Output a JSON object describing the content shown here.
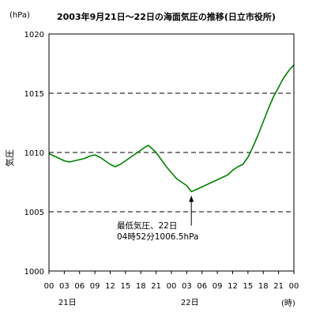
{
  "chart_data": {
    "type": "line",
    "title": "2003年9月21日～22日の海面気圧の推移(日立市役所)",
    "y_unit": "(hPa)",
    "ylabel": "気圧",
    "x_unit": "(時)",
    "ylim": [
      1000,
      1020
    ],
    "xlim": [
      0,
      48
    ],
    "grid": "horizontal dashed",
    "y_ticks": [
      {
        "value": 1000,
        "label": "1000"
      },
      {
        "value": 1005,
        "label": "1005"
      },
      {
        "value": 1010,
        "label": "1010"
      },
      {
        "value": 1015,
        "label": "1015"
      },
      {
        "value": 1020,
        "label": "1020"
      }
    ],
    "x_ticks": [
      {
        "value": 0,
        "label": "00"
      },
      {
        "value": 3,
        "label": "03"
      },
      {
        "value": 6,
        "label": "06"
      },
      {
        "value": 9,
        "label": "09"
      },
      {
        "value": 12,
        "label": "12"
      },
      {
        "value": 15,
        "label": "15"
      },
      {
        "value": 18,
        "label": "18"
      },
      {
        "value": 21,
        "label": "21"
      },
      {
        "value": 24,
        "label": "00"
      },
      {
        "value": 27,
        "label": "03"
      },
      {
        "value": 30,
        "label": "06"
      },
      {
        "value": 33,
        "label": "09"
      },
      {
        "value": 36,
        "label": "12"
      },
      {
        "value": 39,
        "label": "15"
      },
      {
        "value": 42,
        "label": "18"
      },
      {
        "value": 45,
        "label": "21"
      },
      {
        "value": 48,
        "label": "00"
      }
    ],
    "day_labels": [
      {
        "value": 3.6,
        "label": "21日"
      },
      {
        "value": 27.6,
        "label": "22日"
      }
    ],
    "series": [
      {
        "color": "#008000",
        "x": [
          0,
          1,
          2,
          3,
          4,
          5,
          6,
          7,
          8,
          9,
          10,
          11,
          12,
          13,
          14,
          15,
          16,
          17,
          18,
          19,
          19.5,
          20,
          21,
          22,
          23,
          24,
          25,
          26,
          27,
          27.9,
          29,
          30,
          31,
          32,
          33,
          34,
          35,
          36,
          37,
          38,
          39,
          40,
          41,
          42,
          43,
          44,
          45,
          46,
          47,
          48
        ],
        "y": [
          1009.9,
          1009.7,
          1009.5,
          1009.3,
          1009.2,
          1009.3,
          1009.4,
          1009.5,
          1009.7,
          1009.8,
          1009.6,
          1009.3,
          1009.0,
          1008.8,
          1009.0,
          1009.3,
          1009.6,
          1009.9,
          1010.2,
          1010.5,
          1010.6,
          1010.4,
          1010.0,
          1009.4,
          1008.8,
          1008.3,
          1007.8,
          1007.5,
          1007.2,
          1006.7,
          1006.9,
          1007.1,
          1007.3,
          1007.5,
          1007.7,
          1007.9,
          1008.1,
          1008.5,
          1008.8,
          1009.0,
          1009.6,
          1010.5,
          1011.5,
          1012.6,
          1013.7,
          1014.7,
          1015.5,
          1016.3,
          1016.9,
          1017.4
        ]
      }
    ],
    "annotation": {
      "line1": "最低気圧、22日",
      "line2": "04時52分1006.5hPa",
      "x": 27.9,
      "y": 1006.5
    }
  }
}
